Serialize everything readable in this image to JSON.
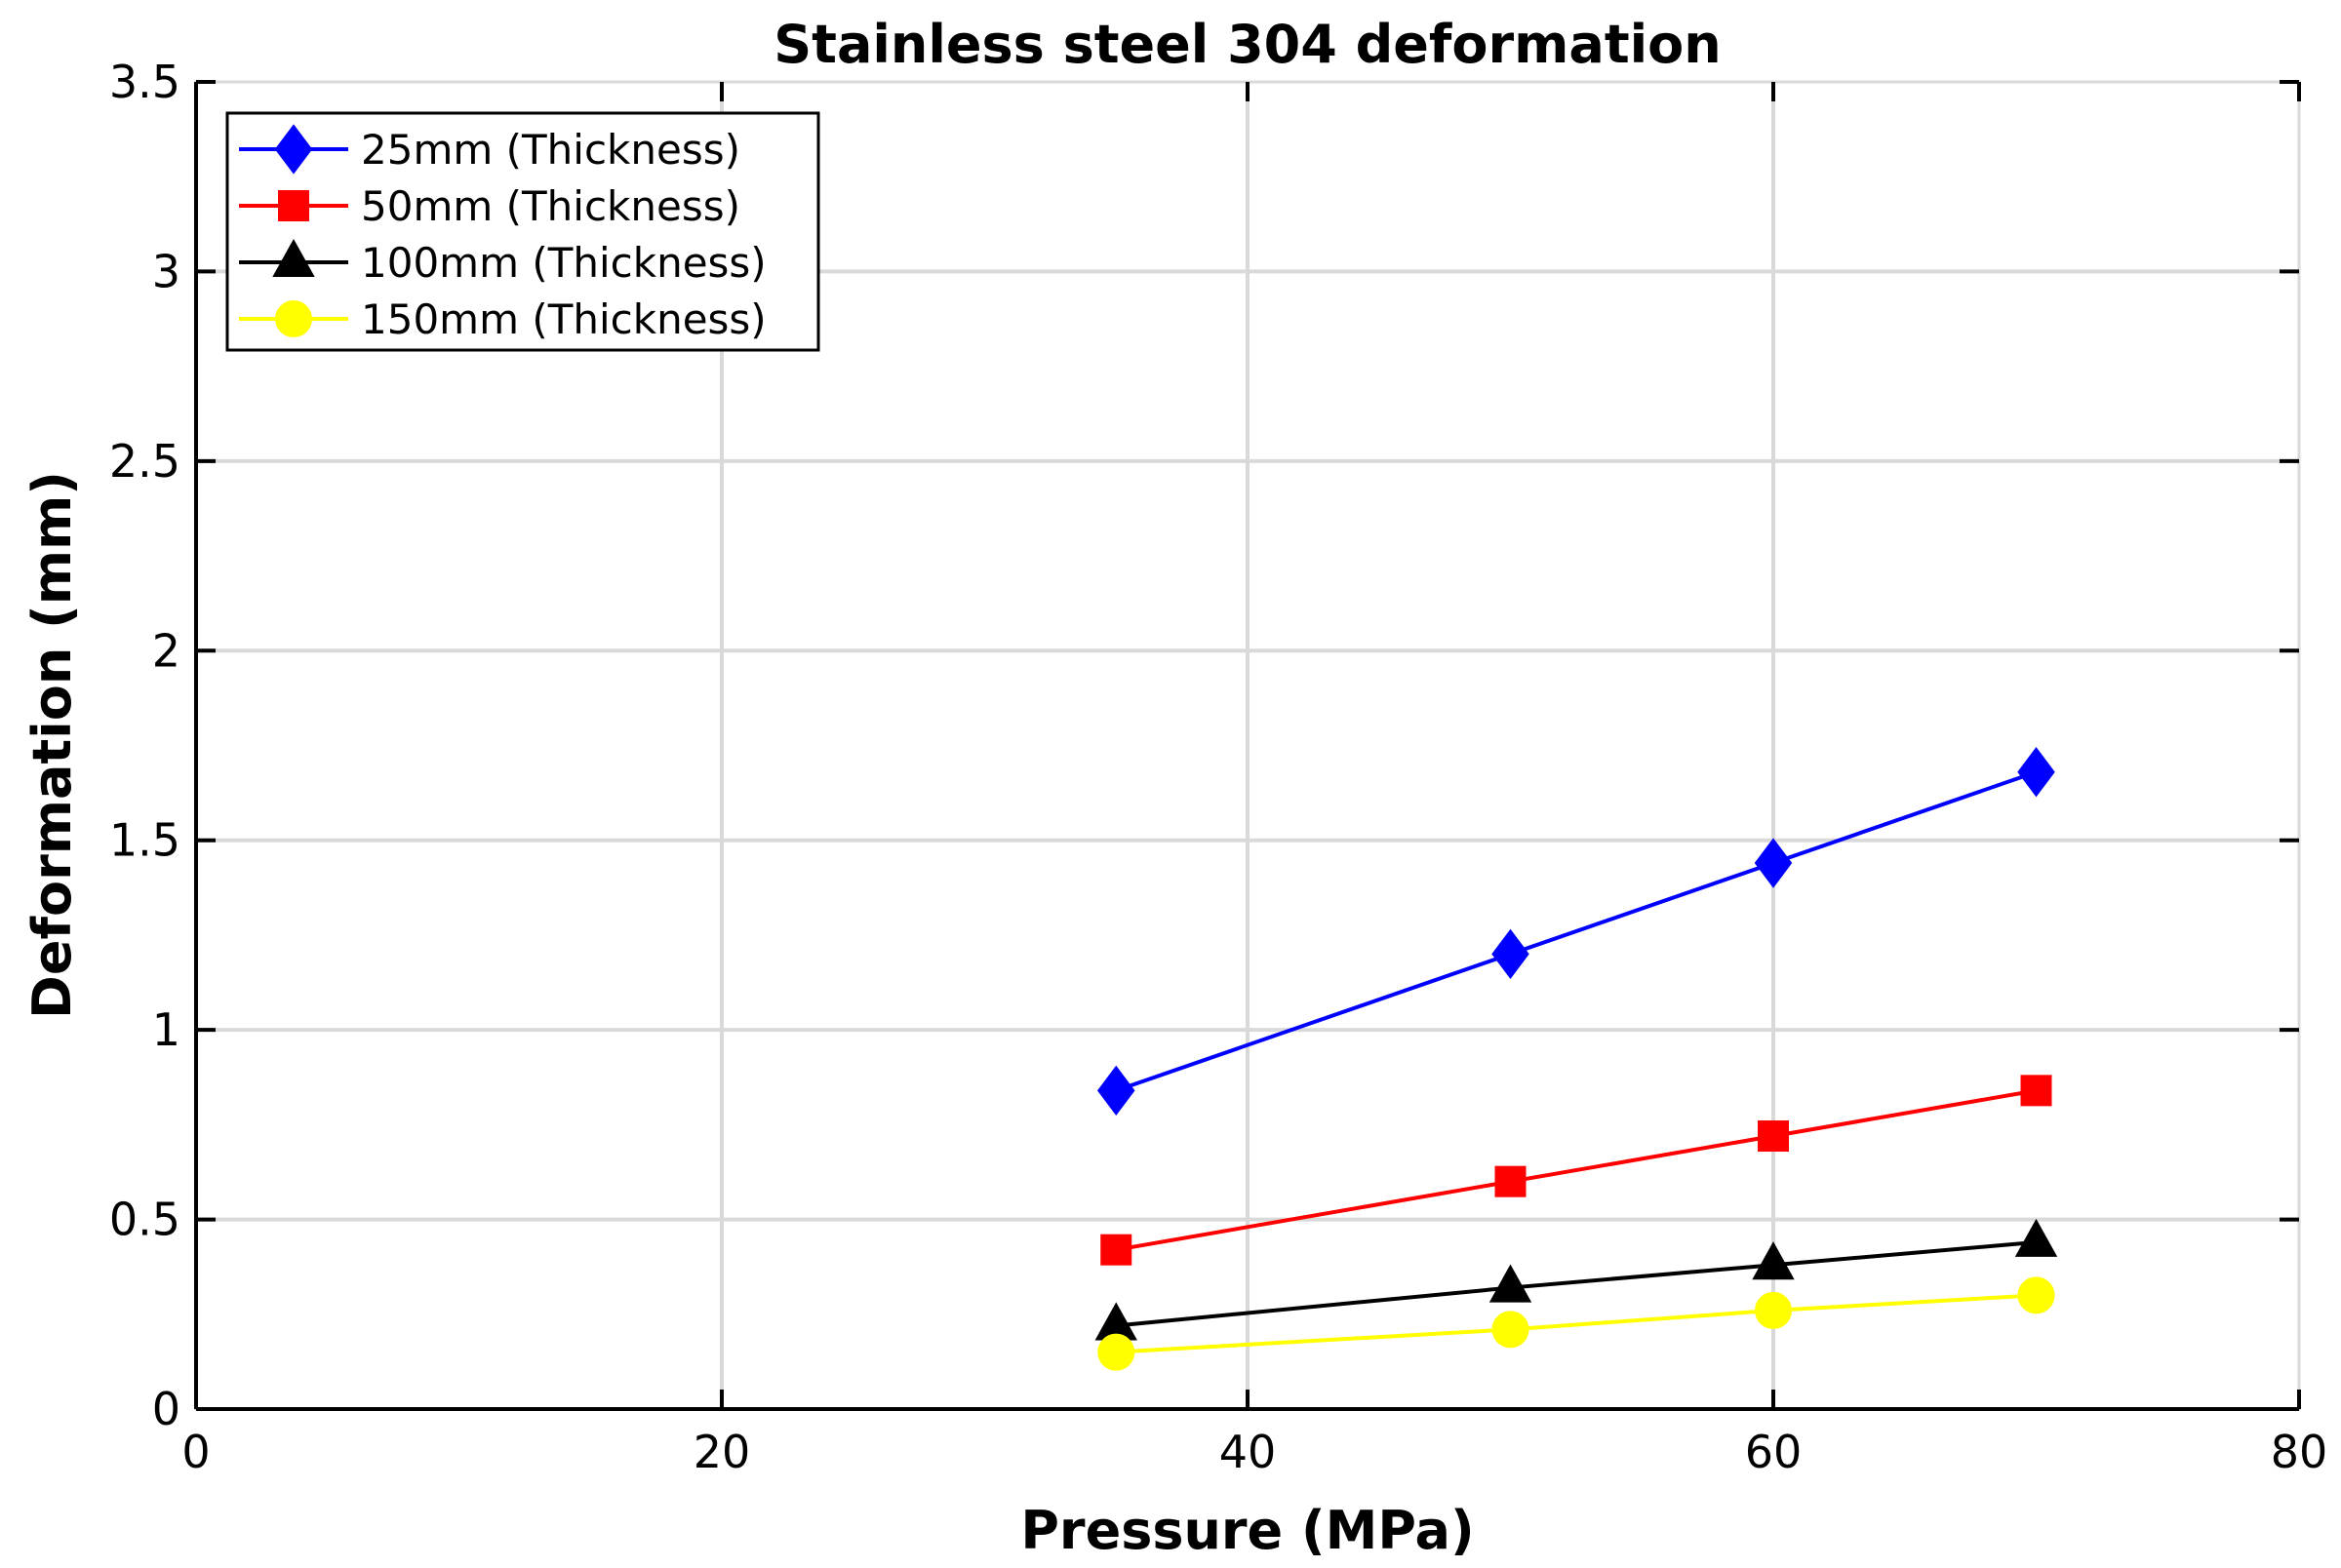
{
  "chart_data": {
    "type": "line",
    "title": "Stainless steel 304 deformation",
    "xlabel": "Pressure (MPa)",
    "ylabel": "Deformation (mm)",
    "xlim": [
      0,
      80
    ],
    "ylim": [
      0,
      3.5
    ],
    "xticks": [
      0,
      20,
      40,
      60,
      80
    ],
    "yticks": [
      0,
      0.5,
      1,
      1.5,
      2,
      2.5,
      3,
      3.5
    ],
    "xtick_labels": [
      "0",
      "20",
      "40",
      "60",
      "80"
    ],
    "ytick_labels": [
      "0",
      "0.5",
      "1",
      "1.5",
      "2",
      "2.5",
      "3",
      "3.5"
    ],
    "grid": true,
    "legend_position": "top-left",
    "x": [
      35,
      50,
      60,
      70
    ],
    "series": [
      {
        "name": "25mm (Thickness)",
        "color": "#0000ff",
        "marker": "diamond",
        "values": [
          0.84,
          1.2,
          1.44,
          1.68
        ]
      },
      {
        "name": "50mm (Thickness)",
        "color": "#ff0000",
        "marker": "square",
        "values": [
          0.42,
          0.6,
          0.72,
          0.84
        ]
      },
      {
        "name": "100mm (Thickness)",
        "color": "#000000",
        "marker": "triangle",
        "values": [
          0.22,
          0.32,
          0.38,
          0.44
        ]
      },
      {
        "name": "150mm (Thickness)",
        "color": "#ffff00",
        "marker": "circle",
        "values": [
          0.15,
          0.21,
          0.26,
          0.3
        ]
      }
    ]
  }
}
